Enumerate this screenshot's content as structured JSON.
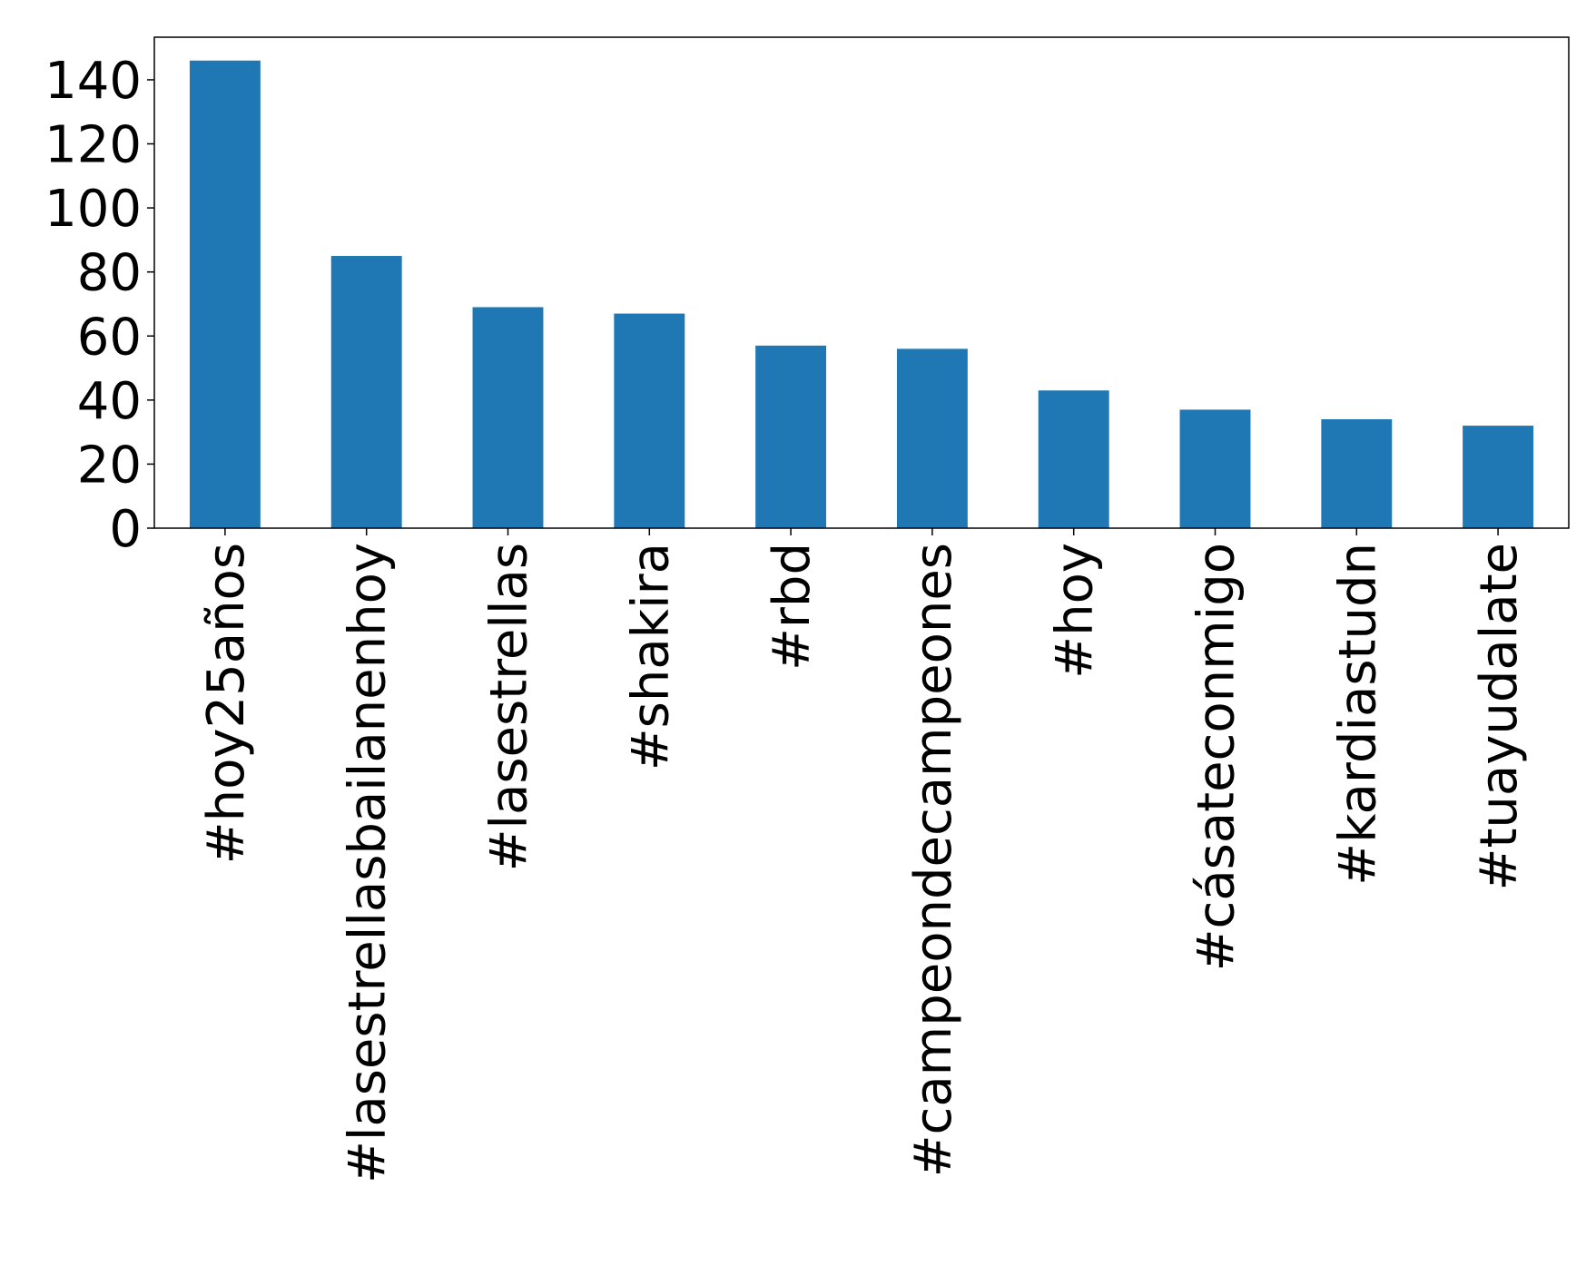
{
  "chart_data": {
    "type": "bar",
    "categories": [
      "#hoy25años",
      "#lasestrellasbailanenhoy",
      "#lasestrellas",
      "#shakira",
      "#rbd",
      "#campeondecampeones",
      "#hoy",
      "#cásateconmigo",
      "#kardiastudn",
      "#tuayudalate"
    ],
    "values": [
      146,
      85,
      69,
      67,
      57,
      56,
      43,
      37,
      34,
      32
    ],
    "color": "#1f77b4",
    "ylim": [
      0,
      153.3
    ],
    "yticks": [
      0,
      20,
      40,
      60,
      80,
      100,
      120,
      140
    ],
    "grid": false
  }
}
